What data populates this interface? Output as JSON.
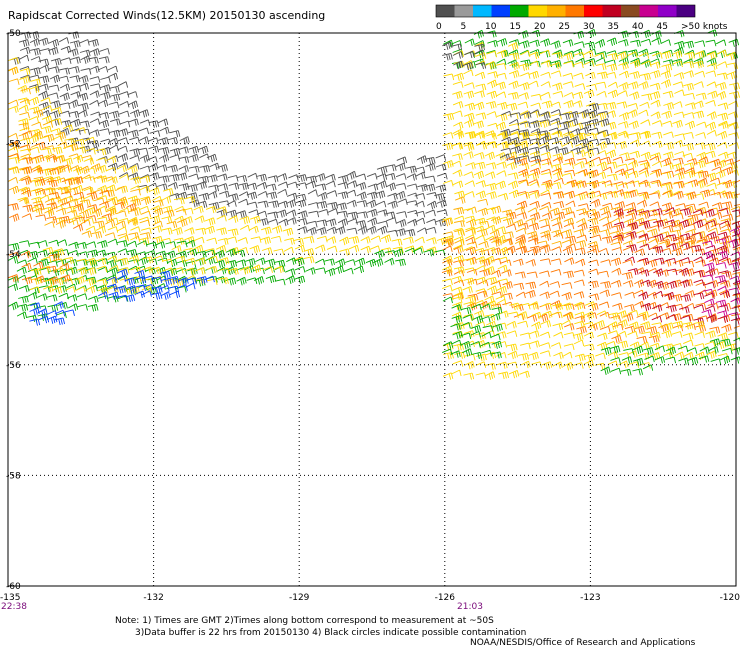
{
  "title": "Rapidscat Corrected Winds(12.5KM) 20150130 ascending",
  "legend": {
    "colors": [
      "#505050",
      "#9a9a9a",
      "#00b8ff",
      "#0040ff",
      "#00aa00",
      "#ffd800",
      "#ffb000",
      "#ff7800",
      "#ff0000",
      "#c00020",
      "#8a4a20",
      "#c80090",
      "#9000c8",
      "#4b0082"
    ],
    "tick_labels": [
      "0",
      "5",
      "10",
      "15",
      "20",
      "25",
      "30",
      "35",
      "40",
      "45",
      ">50 knots"
    ]
  },
  "axes": {
    "lon_labels": [
      "-135",
      "-132",
      "-129",
      "-126",
      "-123",
      "-120"
    ],
    "lat_labels": [
      "-50",
      "-52",
      "-54",
      "-56",
      "-58",
      "-60"
    ],
    "lon_range": [
      -135,
      -120
    ],
    "lat_range": [
      -60,
      -50
    ]
  },
  "pass_times": [
    "22:38",
    "21:03"
  ],
  "notes": {
    "line1": "Note: 1) Times are GMT 2)Times along bottom correspond to measurement at ~50S",
    "line2": "       3)Data buffer is 22 hrs from 20150130 4) Black circles indicate possible contamination"
  },
  "credit": "NOAA/NESDIS/Office of Research and Applications"
}
